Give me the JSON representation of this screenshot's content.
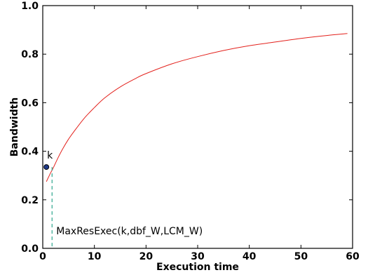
{
  "chart_data": {
    "type": "line",
    "xlabel": "Execution time",
    "ylabel": "Bandwidth",
    "xlim": [
      0,
      60
    ],
    "ylim": [
      0.0,
      1.0
    ],
    "xticks": [
      "0",
      "10",
      "20",
      "30",
      "40",
      "50",
      "60"
    ],
    "yticks": [
      "0.0",
      "0.2",
      "0.4",
      "0.6",
      "0.8",
      "1.0"
    ],
    "grid": false,
    "series": [
      {
        "color": "#e3211c",
        "x": [
          0.7,
          1.5,
          2,
          3,
          4,
          5,
          6,
          8,
          10,
          12,
          15,
          18,
          20,
          25,
          30,
          35,
          40,
          45,
          50,
          55,
          59
        ],
        "y": [
          0.275,
          0.31,
          0.33,
          0.375,
          0.415,
          0.45,
          0.48,
          0.535,
          0.58,
          0.62,
          0.665,
          0.7,
          0.72,
          0.76,
          0.79,
          0.815,
          0.835,
          0.85,
          0.865,
          0.877,
          0.885
        ]
      }
    ],
    "point": {
      "label": "k",
      "x": 0.7,
      "y": 0.335,
      "color": "#1f3a8a"
    },
    "vline": {
      "x": 1.8,
      "y_top": 0.335,
      "color": "#2ca58d"
    },
    "annotation": {
      "text": "MaxResExec(k,dbf_W,LCM_W)"
    }
  }
}
